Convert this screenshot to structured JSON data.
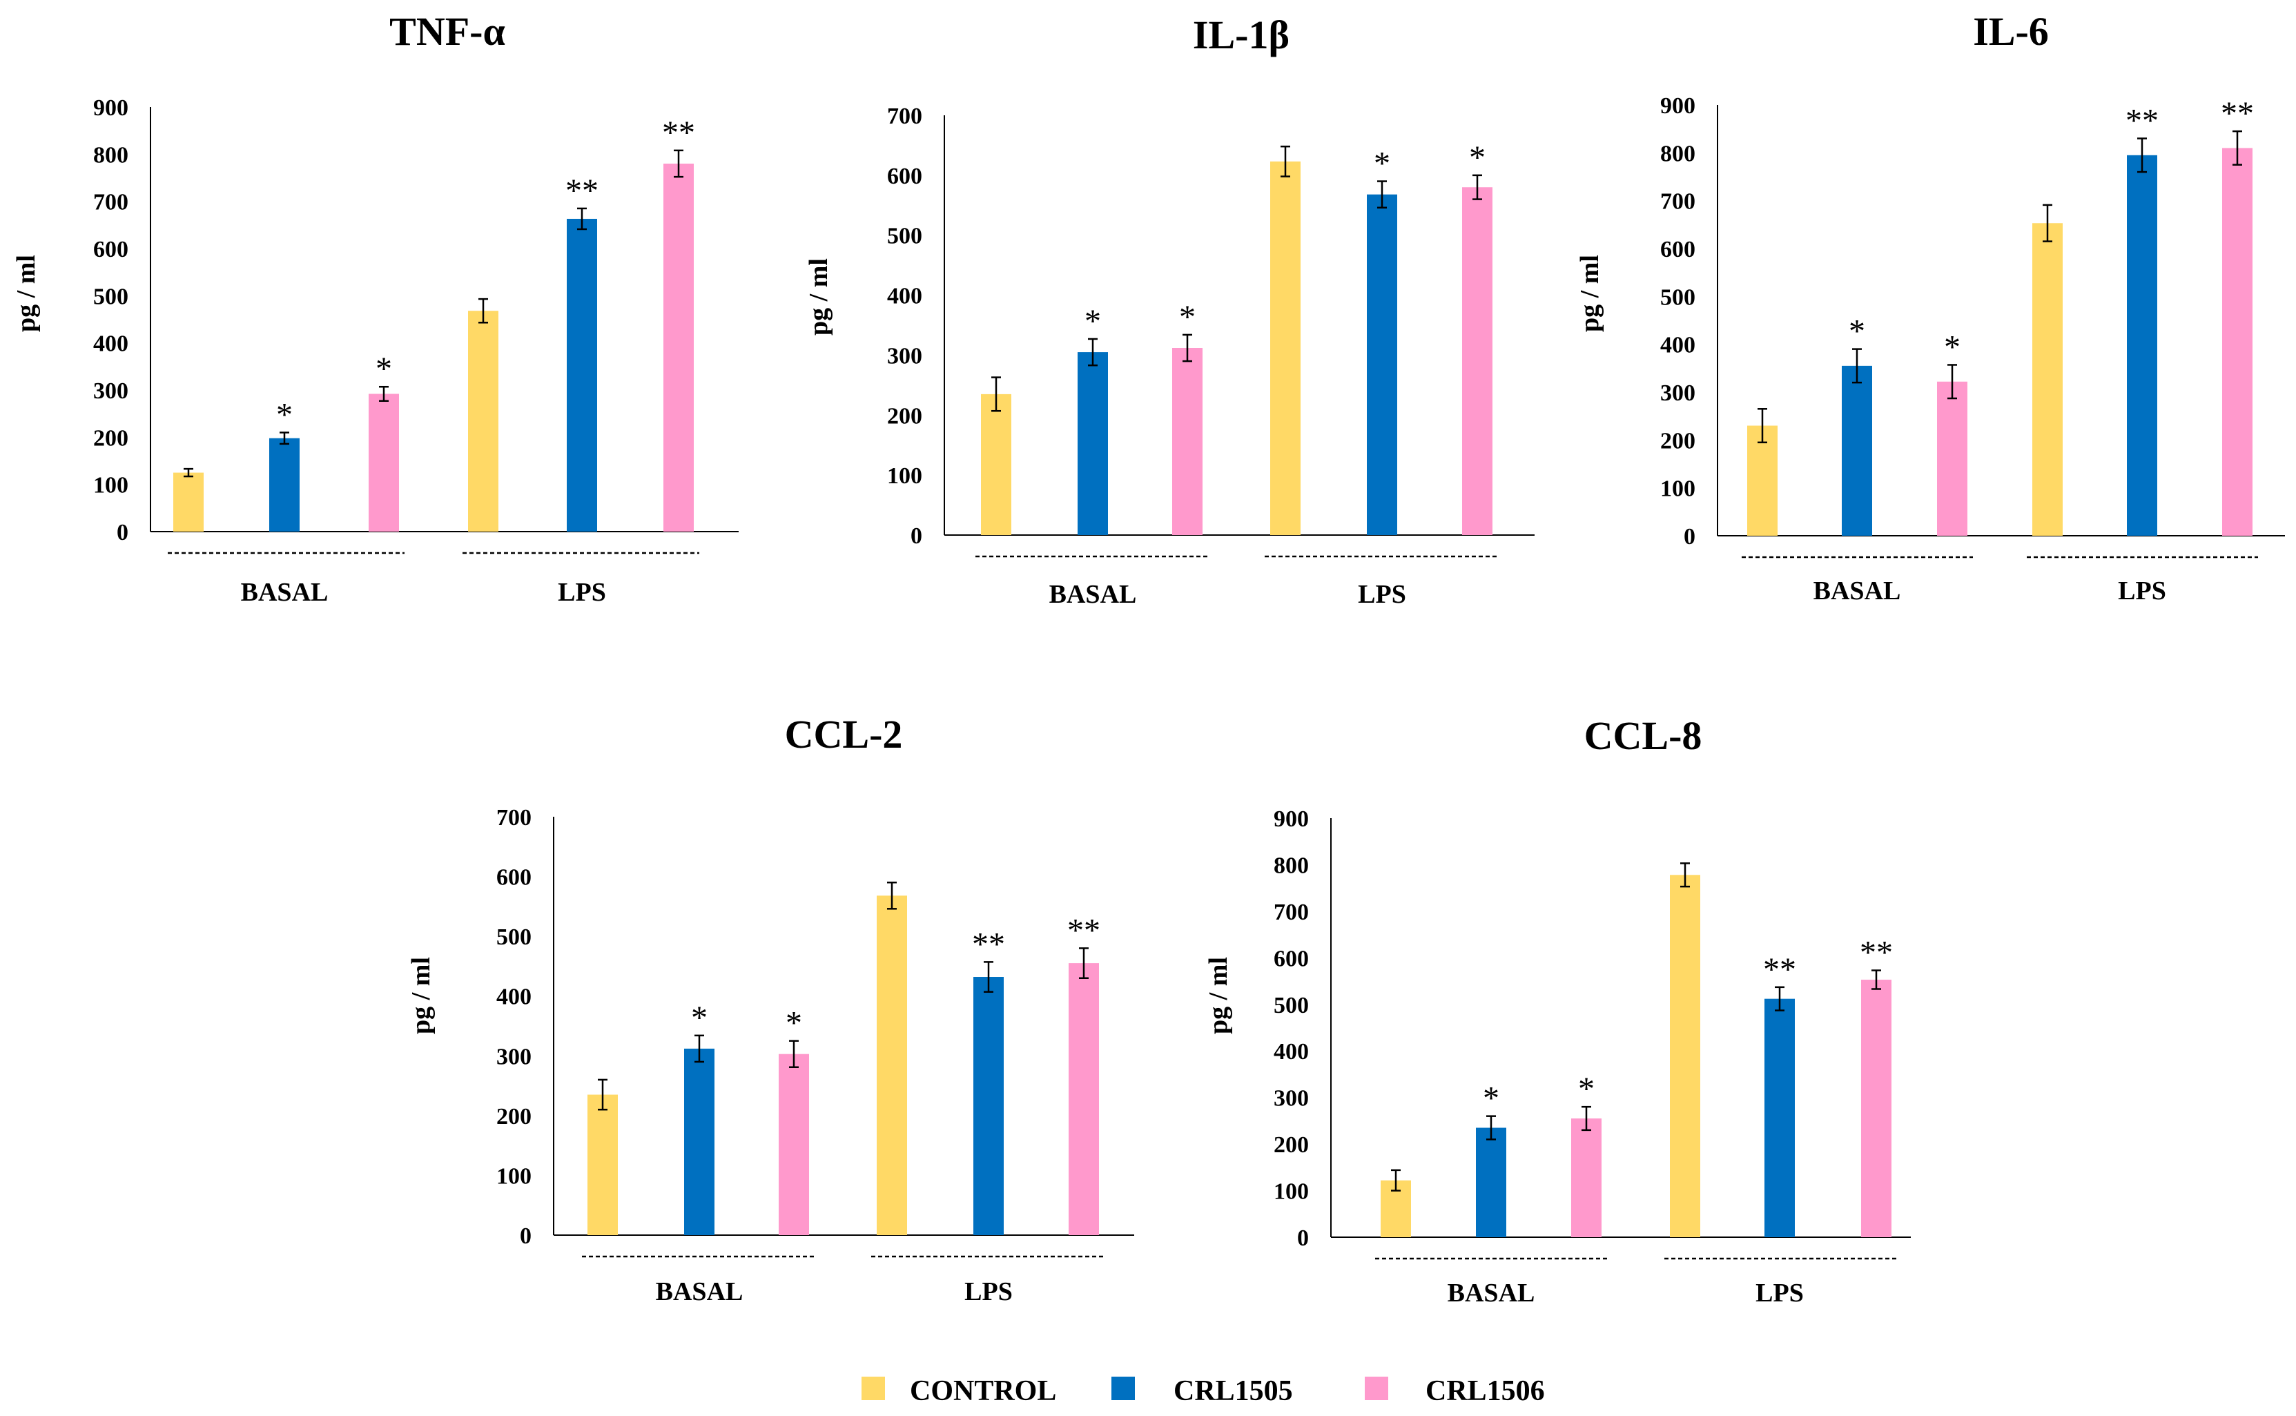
{
  "legend": [
    {
      "label": "CONTROL",
      "color": "#FFD966"
    },
    {
      "label": "CRL1505",
      "color": "#0070C0"
    },
    {
      "label": "CRL1506",
      "color": "#FF99CC"
    }
  ],
  "series_colors": [
    "#FFD966",
    "#0070C0",
    "#FF99CC"
  ],
  "chart_data": [
    {
      "type": "bar",
      "title": "TNF-α",
      "ylabel": "pg / ml",
      "ylim": [
        0,
        900
      ],
      "yticks": [
        0,
        100,
        200,
        300,
        400,
        500,
        600,
        700,
        800,
        900
      ],
      "groups": [
        "BASAL",
        "LPS"
      ],
      "series": [
        {
          "name": "CONTROL",
          "values": [
            125,
            468
          ],
          "errors": [
            8,
            25
          ],
          "sig": [
            "",
            ""
          ]
        },
        {
          "name": "CRL1505",
          "values": [
            198,
            663
          ],
          "errors": [
            12,
            22
          ],
          "sig": [
            "*",
            "**"
          ]
        },
        {
          "name": "CRL1506",
          "values": [
            292,
            780
          ],
          "errors": [
            15,
            28
          ],
          "sig": [
            "*",
            "**"
          ]
        }
      ]
    },
    {
      "type": "bar",
      "title": "IL-1β",
      "ylabel": "pg / ml",
      "ylim": [
        0,
        700
      ],
      "yticks": [
        0,
        100,
        200,
        300,
        400,
        500,
        600,
        700
      ],
      "groups": [
        "BASAL",
        "LPS"
      ],
      "series": [
        {
          "name": "CONTROL",
          "values": [
            235,
            623
          ],
          "errors": [
            28,
            25
          ],
          "sig": [
            "",
            ""
          ]
        },
        {
          "name": "CRL1505",
          "values": [
            305,
            568
          ],
          "errors": [
            22,
            22
          ],
          "sig": [
            "*",
            "*"
          ]
        },
        {
          "name": "CRL1506",
          "values": [
            312,
            580
          ],
          "errors": [
            22,
            20
          ],
          "sig": [
            "*",
            "*"
          ]
        }
      ]
    },
    {
      "type": "bar",
      "title": "IL-6",
      "ylabel": "pg / ml",
      "ylim": [
        0,
        900
      ],
      "yticks": [
        0,
        100,
        200,
        300,
        400,
        500,
        600,
        700,
        800,
        900
      ],
      "groups": [
        "BASAL",
        "LPS"
      ],
      "series": [
        {
          "name": "CONTROL",
          "values": [
            230,
            653
          ],
          "errors": [
            35,
            38
          ],
          "sig": [
            "",
            ""
          ]
        },
        {
          "name": "CRL1505",
          "values": [
            355,
            795
          ],
          "errors": [
            35,
            35
          ],
          "sig": [
            "*",
            "**"
          ]
        },
        {
          "name": "CRL1506",
          "values": [
            322,
            810
          ],
          "errors": [
            35,
            35
          ],
          "sig": [
            "*",
            "**"
          ]
        }
      ]
    },
    {
      "type": "bar",
      "title": "CCL-2",
      "ylabel": "pg / ml",
      "ylim": [
        0,
        700
      ],
      "yticks": [
        0,
        100,
        200,
        300,
        400,
        500,
        600,
        700
      ],
      "groups": [
        "BASAL",
        "LPS"
      ],
      "series": [
        {
          "name": "CONTROL",
          "values": [
            235,
            568
          ],
          "errors": [
            25,
            22
          ],
          "sig": [
            "",
            ""
          ]
        },
        {
          "name": "CRL1505",
          "values": [
            312,
            432
          ],
          "errors": [
            22,
            25
          ],
          "sig": [
            "*",
            "**"
          ]
        },
        {
          "name": "CRL1506",
          "values": [
            303,
            455
          ],
          "errors": [
            22,
            25
          ],
          "sig": [
            "*",
            "**"
          ]
        }
      ]
    },
    {
      "type": "bar",
      "title": "CCL-8",
      "ylabel": "pg / ml",
      "ylim": [
        0,
        900
      ],
      "yticks": [
        0,
        100,
        200,
        300,
        400,
        500,
        600,
        700,
        800,
        900
      ],
      "groups": [
        "BASAL",
        "LPS"
      ],
      "series": [
        {
          "name": "CONTROL",
          "values": [
            122,
            778
          ],
          "errors": [
            22,
            25
          ],
          "sig": [
            "",
            ""
          ]
        },
        {
          "name": "CRL1505",
          "values": [
            235,
            512
          ],
          "errors": [
            25,
            25
          ],
          "sig": [
            "*",
            "**"
          ]
        },
        {
          "name": "CRL1506",
          "values": [
            255,
            553
          ],
          "errors": [
            25,
            20
          ],
          "sig": [
            "*",
            "**"
          ]
        }
      ]
    }
  ]
}
